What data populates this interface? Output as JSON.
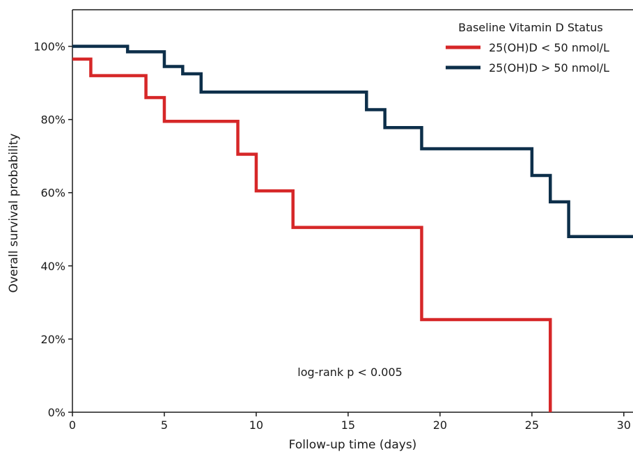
{
  "chart_data": {
    "type": "line",
    "subtype": "step",
    "xlabel": "Follow-up time (days)",
    "ylabel": "Overall survival probability",
    "xlim": [
      0,
      30.5
    ],
    "ylim": [
      0,
      110
    ],
    "xticks": [
      0,
      5,
      10,
      15,
      20,
      25,
      30
    ],
    "xtick_labels": [
      "0",
      "5",
      "10",
      "15",
      "20",
      "25",
      "30"
    ],
    "yticks": [
      0,
      20,
      40,
      60,
      80,
      100
    ],
    "ytick_labels": [
      "0%",
      "20%",
      "40%",
      "60%",
      "80%",
      "100%"
    ],
    "grid": false,
    "legend": {
      "title": "Baseline Vitamin D Status",
      "placement": "top-right"
    },
    "annotation": "log-rank p < 0.005",
    "series": [
      {
        "name": "25(OH)D < 50 nmol/L",
        "color": "#d62728",
        "x": [
          0,
          1,
          4,
          5,
          9,
          10,
          12,
          19,
          26,
          26
        ],
        "y": [
          96.5,
          92,
          86,
          79.5,
          70.5,
          60.5,
          50.5,
          25.3,
          25.3,
          0
        ]
      },
      {
        "name": "25(OH)D > 50 nmol/L",
        "color": "#0d2f4a",
        "x": [
          0,
          3,
          5,
          6,
          7,
          16,
          17,
          19,
          25,
          26,
          27,
          30.5
        ],
        "y": [
          100,
          98.5,
          94.5,
          92.5,
          87.5,
          82.7,
          77.8,
          72,
          64.7,
          57.5,
          48,
          48
        ]
      }
    ]
  }
}
